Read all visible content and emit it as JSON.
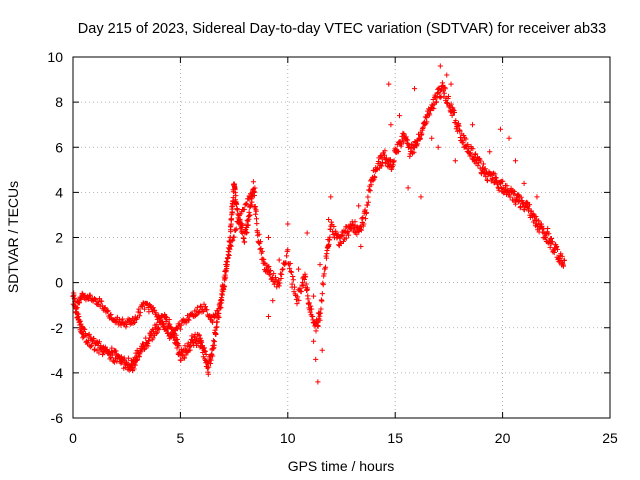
{
  "chart_data": {
    "type": "scatter",
    "title": "Day 215 of 2023, Sidereal Day-to-day VTEC variation (SDTVAR) for receiver ab33",
    "xlabel": "GPS time / hours",
    "ylabel": "SDTVAR / TECUs",
    "xlim": [
      0,
      25
    ],
    "ylim": [
      -6,
      10
    ],
    "xticks": [
      0,
      5,
      10,
      15,
      20,
      25
    ],
    "yticks": [
      -6,
      -4,
      -2,
      0,
      2,
      4,
      6,
      8,
      10
    ],
    "grid": true,
    "marker": "+",
    "series_color": "#ff0000",
    "series": [
      {
        "name": "SDTVAR",
        "track_points": [
          [
            0.0,
            -0.6
          ],
          [
            0.15,
            -1.2
          ],
          [
            0.3,
            -1.8
          ],
          [
            0.5,
            -2.3
          ],
          [
            0.8,
            -2.6
          ],
          [
            1.1,
            -2.8
          ],
          [
            1.4,
            -3.0
          ],
          [
            1.7,
            -3.1
          ],
          [
            2.0,
            -3.3
          ],
          [
            2.3,
            -3.5
          ],
          [
            2.6,
            -3.6
          ],
          [
            2.8,
            -3.7
          ],
          [
            3.0,
            -3.2
          ],
          [
            3.3,
            -2.8
          ],
          [
            3.6,
            -2.4
          ],
          [
            3.9,
            -2.0
          ],
          [
            4.2,
            -1.6
          ],
          [
            4.5,
            -1.9
          ],
          [
            4.8,
            -2.6
          ],
          [
            5.0,
            -3.2
          ],
          [
            5.3,
            -3.0
          ],
          [
            5.6,
            -2.5
          ],
          [
            5.9,
            -2.6
          ],
          [
            6.1,
            -3.1
          ],
          [
            6.3,
            -3.8
          ],
          [
            6.5,
            -3.0
          ],
          [
            6.7,
            -1.8
          ],
          [
            6.9,
            -0.8
          ],
          [
            7.1,
            0.5
          ],
          [
            7.3,
            1.8
          ],
          [
            7.4,
            3.2
          ],
          [
            7.5,
            4.5
          ],
          [
            7.6,
            3.5
          ],
          [
            7.8,
            2.6
          ],
          [
            8.0,
            2.0
          ],
          [
            8.2,
            3.0
          ],
          [
            8.4,
            4.2
          ],
          [
            8.6,
            2.2
          ],
          [
            8.9,
            0.8
          ],
          [
            9.2,
            0.3
          ],
          [
            9.6,
            0.0
          ],
          [
            10.0,
            1.2
          ],
          [
            10.4,
            -0.8
          ],
          [
            10.8,
            0.2
          ],
          [
            11.0,
            -1.0
          ],
          [
            11.3,
            -2.0
          ],
          [
            11.5,
            -1.4
          ],
          [
            11.8,
            1.2
          ],
          [
            12.0,
            2.5
          ],
          [
            12.4,
            1.8
          ],
          [
            12.7,
            2.2
          ],
          [
            13.0,
            2.6
          ],
          [
            13.3,
            2.2
          ],
          [
            13.6,
            3.0
          ],
          [
            13.9,
            4.5
          ],
          [
            14.2,
            5.2
          ],
          [
            14.5,
            5.6
          ],
          [
            14.8,
            5.2
          ],
          [
            15.1,
            6.0
          ],
          [
            15.4,
            6.5
          ],
          [
            15.7,
            5.8
          ],
          [
            16.0,
            6.2
          ],
          [
            16.3,
            7.0
          ],
          [
            16.6,
            7.6
          ],
          [
            16.9,
            8.2
          ],
          [
            17.2,
            8.6
          ],
          [
            17.5,
            8.0
          ],
          [
            17.8,
            7.2
          ],
          [
            18.1,
            6.4
          ],
          [
            18.4,
            6.0
          ],
          [
            18.7,
            5.6
          ],
          [
            19.0,
            5.1
          ],
          [
            19.3,
            4.8
          ],
          [
            19.6,
            4.6
          ],
          [
            19.9,
            4.3
          ],
          [
            20.2,
            4.1
          ],
          [
            20.5,
            3.8
          ],
          [
            20.8,
            3.6
          ],
          [
            21.1,
            3.4
          ],
          [
            21.4,
            3.0
          ],
          [
            21.7,
            2.5
          ],
          [
            22.0,
            2.1
          ],
          [
            22.3,
            1.7
          ],
          [
            22.6,
            1.2
          ],
          [
            22.9,
            0.7
          ]
        ],
        "secondary_track_points": [
          [
            0.2,
            -0.8
          ],
          [
            0.5,
            -0.6
          ],
          [
            0.9,
            -0.7
          ],
          [
            1.3,
            -0.9
          ],
          [
            1.7,
            -1.4
          ],
          [
            2.1,
            -1.7
          ],
          [
            2.5,
            -1.8
          ],
          [
            2.9,
            -1.6
          ],
          [
            3.3,
            -1.0
          ],
          [
            3.7,
            -1.2
          ],
          [
            4.1,
            -1.8
          ],
          [
            4.5,
            -2.4
          ],
          [
            4.9,
            -2.0
          ],
          [
            5.3,
            -1.6
          ],
          [
            5.7,
            -1.3
          ],
          [
            6.1,
            -1.1
          ],
          [
            6.5,
            -1.6
          ],
          [
            6.9,
            -1.0
          ],
          [
            7.2,
            1.0
          ],
          [
            7.6,
            2.5
          ],
          [
            8.1,
            3.6
          ],
          [
            8.5,
            4.3
          ]
        ],
        "scattered_points": [
          [
            9.1,
            2.0
          ],
          [
            9.1,
            -1.5
          ],
          [
            9.3,
            -0.8
          ],
          [
            9.6,
            1.0
          ],
          [
            10.0,
            2.6
          ],
          [
            10.2,
            -0.2
          ],
          [
            10.5,
            0.6
          ],
          [
            10.7,
            0.2
          ],
          [
            10.9,
            2.2
          ],
          [
            11.2,
            -2.6
          ],
          [
            11.3,
            -3.4
          ],
          [
            11.4,
            -4.4
          ],
          [
            11.6,
            -3.0
          ],
          [
            11.2,
            -0.6
          ],
          [
            11.5,
            0.8
          ],
          [
            11.9,
            2.8
          ],
          [
            12.0,
            3.8
          ],
          [
            12.3,
            2.0
          ],
          [
            13.3,
            3.4
          ],
          [
            13.4,
            1.6
          ],
          [
            14.7,
            8.8
          ],
          [
            14.8,
            7.0
          ],
          [
            15.2,
            7.4
          ],
          [
            15.6,
            4.2
          ],
          [
            15.9,
            8.6
          ],
          [
            16.2,
            3.8
          ],
          [
            17.1,
            9.6
          ],
          [
            17.4,
            9.2
          ],
          [
            17.6,
            8.8
          ],
          [
            16.7,
            6.4
          ],
          [
            17.0,
            6.0
          ],
          [
            17.8,
            5.4
          ],
          [
            18.6,
            7.0
          ],
          [
            19.4,
            5.8
          ],
          [
            19.9,
            6.8
          ],
          [
            20.3,
            6.4
          ],
          [
            20.6,
            5.4
          ],
          [
            21.0,
            4.4
          ],
          [
            21.6,
            3.8
          ],
          [
            22.1,
            2.4
          ]
        ]
      }
    ]
  }
}
